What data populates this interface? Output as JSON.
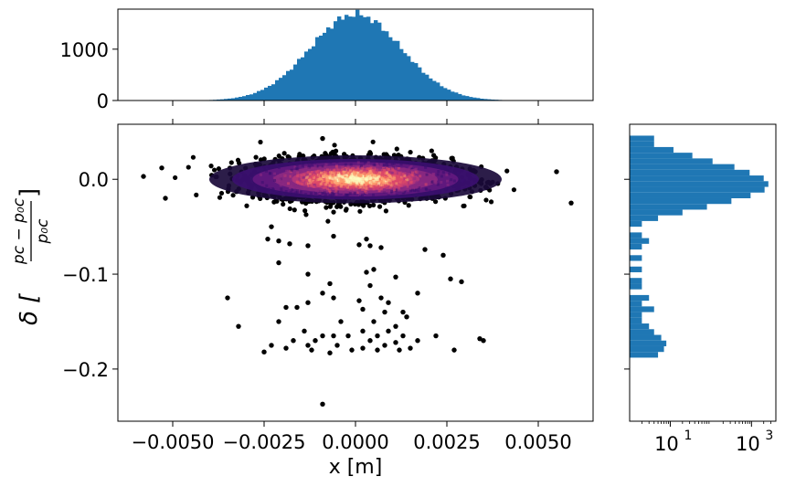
{
  "chart_data": [
    {
      "type": "histogram",
      "panel": "top-marginal",
      "xlim": [
        -0.0065,
        0.0065
      ],
      "ylim": [
        0,
        1780
      ],
      "yticks": [
        0,
        1000
      ],
      "ytick_labels": [
        "0",
        "1000"
      ],
      "xticks": [
        -0.005,
        -0.0025,
        0.0,
        0.0025,
        0.005
      ],
      "bins": {
        "start": -0.0058,
        "width": 0.0001,
        "count": 107
      },
      "distribution": {
        "shape": "gaussian",
        "mean": 0.0,
        "sigma": 0.00125,
        "peak": 1680
      },
      "color": "#1f77b4"
    },
    {
      "type": "scatter",
      "panel": "main",
      "xlabel": "x [m]",
      "ylabel_prefix": "δ [",
      "ylabel_fraction": {
        "numerator": "pc − p₀c",
        "denominator": "p₀c"
      },
      "ylabel_suffix": "]",
      "xlim": [
        -0.0065,
        0.0065
      ],
      "ylim": [
        -0.255,
        0.058
      ],
      "xticks": [
        -0.005,
        -0.0025,
        0.0,
        0.0025,
        0.005
      ],
      "xtick_labels": [
        "−0.0050",
        "−0.0025",
        "0.0000",
        "0.0025",
        "0.0050"
      ],
      "yticks": [
        0.0,
        -0.1,
        -0.2
      ],
      "ytick_labels": [
        "0.0",
        "−0.1",
        "−0.2"
      ],
      "core": {
        "x_sigma": 0.00125,
        "delta_sigma": 0.011,
        "density_colormap": "magma"
      },
      "outliers": [
        [
          -0.0058,
          0.003
        ],
        [
          -0.0052,
          -0.02
        ],
        [
          -0.0053,
          0.012
        ],
        [
          0.0055,
          0.008
        ],
        [
          0.0059,
          -0.025
        ],
        [
          -0.0009,
          0.043
        ],
        [
          -0.0023,
          -0.05
        ],
        [
          -0.0024,
          -0.063
        ],
        [
          -0.0021,
          -0.065
        ],
        [
          -0.0018,
          -0.068
        ],
        [
          -0.0013,
          -0.07
        ],
        [
          -0.0006,
          -0.06
        ],
        [
          0.0003,
          -0.063
        ],
        [
          0.0004,
          -0.07
        ],
        [
          0.0001,
          -0.069
        ],
        [
          0.0007,
          -0.072
        ],
        [
          0.0019,
          -0.074
        ],
        [
          0.0024,
          -0.08
        ],
        [
          -0.0021,
          -0.088
        ],
        [
          0.0005,
          -0.095
        ],
        [
          0.0003,
          -0.098
        ],
        [
          -0.0013,
          -0.1
        ],
        [
          0.0011,
          -0.103
        ],
        [
          -0.0007,
          -0.11
        ],
        [
          0.0004,
          -0.112
        ],
        [
          0.0026,
          -0.105
        ],
        [
          0.0029,
          -0.108
        ],
        [
          -0.0009,
          -0.12
        ],
        [
          -0.0006,
          -0.125
        ],
        [
          0.0001,
          -0.128
        ],
        [
          0.0007,
          -0.125
        ],
        [
          -0.0035,
          -0.125
        ],
        [
          0.0017,
          -0.12
        ],
        [
          0.0009,
          -0.13
        ],
        [
          -0.0013,
          -0.13
        ],
        [
          -0.0016,
          -0.135
        ],
        [
          -0.0019,
          -0.135
        ],
        [
          0.0002,
          -0.137
        ],
        [
          0.0008,
          -0.14
        ],
        [
          0.0013,
          -0.14
        ],
        [
          0.0014,
          -0.145
        ],
        [
          -0.0004,
          -0.15
        ],
        [
          -0.0032,
          -0.155
        ],
        [
          -0.0021,
          -0.15
        ],
        [
          0.0005,
          -0.15
        ],
        [
          0.0011,
          -0.155
        ],
        [
          -0.0014,
          -0.16
        ],
        [
          -0.0009,
          -0.165
        ],
        [
          -0.0006,
          -0.165
        ],
        [
          -0.0002,
          -0.165
        ],
        [
          0.0002,
          -0.16
        ],
        [
          0.0006,
          -0.165
        ],
        [
          0.0009,
          -0.16
        ],
        [
          0.0013,
          -0.165
        ],
        [
          0.0017,
          -0.17
        ],
        [
          -0.0017,
          -0.17
        ],
        [
          -0.0011,
          -0.17
        ],
        [
          0.0004,
          -0.17
        ],
        [
          0.0011,
          -0.172
        ],
        [
          0.0022,
          -0.165
        ],
        [
          -0.0023,
          -0.175
        ],
        [
          -0.0013,
          -0.175
        ],
        [
          -0.0005,
          -0.175
        ],
        [
          0.0002,
          -0.178
        ],
        [
          0.0008,
          -0.175
        ],
        [
          0.0015,
          -0.178
        ],
        [
          -0.0025,
          -0.182
        ],
        [
          -0.0019,
          -0.178
        ],
        [
          -0.0001,
          -0.18
        ],
        [
          0.0034,
          -0.168
        ],
        [
          0.0035,
          -0.17
        ],
        [
          0.0027,
          -0.18
        ],
        [
          -0.0012,
          -0.18
        ],
        [
          0.0006,
          -0.18
        ],
        [
          -0.0007,
          -0.183
        ],
        [
          0.0012,
          -0.18
        ],
        [
          -0.0009,
          -0.237
        ]
      ]
    },
    {
      "type": "histogram",
      "panel": "right-marginal",
      "orientation": "horizontal",
      "xscale": "log",
      "xlim_log10": [
        0.0,
        3.6
      ],
      "xticks_log10": [
        1,
        3
      ],
      "xtick_labels": [
        {
          "base": "10",
          "exp": "1"
        },
        {
          "base": "10",
          "exp": "3"
        }
      ],
      "ylim": [
        -0.255,
        0.058
      ],
      "yticks": [
        0.0,
        -0.1,
        -0.2
      ],
      "color": "#1f77b4",
      "bins": [
        {
          "y0": 0.04,
          "y1": 0.046,
          "count": 4
        },
        {
          "y0": 0.034,
          "y1": 0.04,
          "count": 4
        },
        {
          "y0": 0.028,
          "y1": 0.034,
          "count": 12
        },
        {
          "y0": 0.022,
          "y1": 0.028,
          "count": 35
        },
        {
          "y0": 0.016,
          "y1": 0.022,
          "count": 110
        },
        {
          "y0": 0.01,
          "y1": 0.016,
          "count": 380
        },
        {
          "y0": 0.004,
          "y1": 0.01,
          "count": 900
        },
        {
          "y0": -0.002,
          "y1": 0.004,
          "count": 2000
        },
        {
          "y0": -0.008,
          "y1": -0.002,
          "count": 2600
        },
        {
          "y0": -0.014,
          "y1": -0.008,
          "count": 2100
        },
        {
          "y0": -0.02,
          "y1": -0.014,
          "count": 950
        },
        {
          "y0": -0.026,
          "y1": -0.02,
          "count": 320
        },
        {
          "y0": -0.032,
          "y1": -0.026,
          "count": 80
        },
        {
          "y0": -0.038,
          "y1": -0.032,
          "count": 20
        },
        {
          "y0": -0.044,
          "y1": -0.038,
          "count": 5
        },
        {
          "y0": -0.05,
          "y1": -0.044,
          "count": 2
        },
        {
          "y0": -0.062,
          "y1": -0.056,
          "count": 2
        },
        {
          "y0": -0.068,
          "y1": -0.062,
          "count": 3
        },
        {
          "y0": -0.074,
          "y1": -0.068,
          "count": 2
        },
        {
          "y0": -0.086,
          "y1": -0.08,
          "count": 2
        },
        {
          "y0": -0.098,
          "y1": -0.092,
          "count": 2
        },
        {
          "y0": -0.104,
          "y1": -0.098,
          "count": 1
        },
        {
          "y0": -0.11,
          "y1": -0.104,
          "count": 2
        },
        {
          "y0": -0.116,
          "y1": -0.11,
          "count": 2
        },
        {
          "y0": -0.128,
          "y1": -0.122,
          "count": 3
        },
        {
          "y0": -0.134,
          "y1": -0.128,
          "count": 2
        },
        {
          "y0": -0.14,
          "y1": -0.134,
          "count": 4
        },
        {
          "y0": -0.146,
          "y1": -0.14,
          "count": 2
        },
        {
          "y0": -0.152,
          "y1": -0.146,
          "count": 2
        },
        {
          "y0": -0.158,
          "y1": -0.152,
          "count": 3
        },
        {
          "y0": -0.164,
          "y1": -0.158,
          "count": 4
        },
        {
          "y0": -0.17,
          "y1": -0.164,
          "count": 6
        },
        {
          "y0": -0.176,
          "y1": -0.17,
          "count": 8
        },
        {
          "y0": -0.182,
          "y1": -0.176,
          "count": 7
        },
        {
          "y0": -0.188,
          "y1": -0.182,
          "count": 5
        },
        {
          "y0": -0.241,
          "y1": -0.235,
          "count": 1
        }
      ]
    }
  ]
}
